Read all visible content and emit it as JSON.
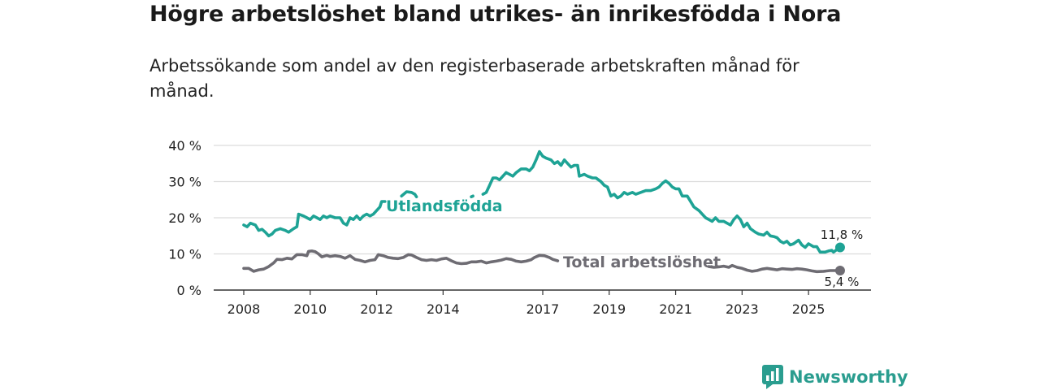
{
  "title": "Högre arbetslöshet bland utrikes- än inrikesfödda i Nora",
  "subtitle": "Arbetssökande som andel av den registerbaserade arbetskraften månad för månad.",
  "brand": {
    "name": "Newsworthy"
  },
  "colors": {
    "foreign": "#1ea395",
    "total": "#6e6c73",
    "grid": "#dcdcdc",
    "brand": "#2a9d8f"
  },
  "chart_data": {
    "type": "line",
    "title": "Högre arbetslöshet bland utrikes- än inrikesfödda i Nora",
    "ylim": [
      0,
      40
    ],
    "xlim": [
      2007.9,
      2026.1
    ],
    "y_ticks": [
      0,
      10,
      20,
      30,
      40
    ],
    "y_tick_labels": [
      "0 %",
      "10 %",
      "20 %",
      "30 %",
      "40 %"
    ],
    "x_ticks": [
      2008,
      2010,
      2012,
      2014,
      2017,
      2019,
      2021,
      2023,
      2025
    ],
    "x_tick_labels": [
      "2008",
      "2010",
      "2012",
      "2014",
      "2017",
      "2019",
      "2021",
      "2023",
      "2025"
    ],
    "grid": true,
    "series": [
      {
        "name": "Utlandsfödda",
        "end_label": "11,8 %",
        "segments": [
          [
            [
              2008.0,
              18
            ],
            [
              2008.1,
              17.5
            ],
            [
              2008.2,
              18.5
            ],
            [
              2008.35,
              18
            ],
            [
              2008.45,
              16.5
            ],
            [
              2008.55,
              16.8
            ],
            [
              2008.65,
              16
            ],
            [
              2008.75,
              15
            ],
            [
              2008.85,
              15.5
            ],
            [
              2008.95,
              16.5
            ],
            [
              2009.1,
              17
            ],
            [
              2009.25,
              16.5
            ],
            [
              2009.35,
              16
            ],
            [
              2009.5,
              17
            ],
            [
              2009.6,
              17.5
            ],
            [
              2009.65,
              21
            ],
            [
              2009.8,
              20.5
            ],
            [
              2009.9,
              20
            ],
            [
              2010.0,
              19.5
            ],
            [
              2010.1,
              20.5
            ],
            [
              2010.2,
              20
            ],
            [
              2010.3,
              19.5
            ],
            [
              2010.4,
              20.5
            ],
            [
              2010.5,
              20
            ],
            [
              2010.6,
              20.5
            ],
            [
              2010.75,
              20
            ],
            [
              2010.9,
              20
            ],
            [
              2011.0,
              18.5
            ],
            [
              2011.1,
              18
            ],
            [
              2011.2,
              20
            ],
            [
              2011.3,
              19.5
            ],
            [
              2011.4,
              20.5
            ],
            [
              2011.5,
              19.5
            ],
            [
              2011.6,
              20.5
            ],
            [
              2011.7,
              21
            ],
            [
              2011.8,
              20.5
            ],
            [
              2011.9,
              21
            ],
            [
              2012.0,
              22
            ],
            [
              2012.1,
              23
            ],
            [
              2012.15,
              24.5
            ],
            [
              2012.25,
              24.5
            ]
          ],
          [
            [
              2012.75,
              26
            ],
            [
              2012.9,
              27.2
            ],
            [
              2013.05,
              27
            ],
            [
              2013.15,
              26.5
            ],
            [
              2013.2,
              25.8
            ]
          ],
          [
            [
              2014.85,
              25.8
            ],
            [
              2014.9,
              26
            ]
          ],
          [
            [
              2015.2,
              26.5
            ],
            [
              2015.3,
              27
            ],
            [
              2015.4,
              29
            ],
            [
              2015.5,
              31
            ],
            [
              2015.6,
              31
            ],
            [
              2015.7,
              30.5
            ],
            [
              2015.8,
              31.5
            ],
            [
              2015.9,
              32.5
            ],
            [
              2016.0,
              32
            ],
            [
              2016.1,
              31.5
            ],
            [
              2016.2,
              32.5
            ],
            [
              2016.35,
              33.5
            ],
            [
              2016.5,
              33.5
            ],
            [
              2016.6,
              33
            ],
            [
              2016.7,
              34
            ],
            [
              2016.8,
              36
            ],
            [
              2016.9,
              38.3
            ],
            [
              2017.0,
              37
            ],
            [
              2017.1,
              36.5
            ],
            [
              2017.25,
              36
            ],
            [
              2017.35,
              35
            ],
            [
              2017.45,
              35.5
            ],
            [
              2017.55,
              34.5
            ],
            [
              2017.65,
              36
            ],
            [
              2017.75,
              35
            ],
            [
              2017.85,
              34
            ],
            [
              2017.95,
              34.5
            ],
            [
              2018.05,
              34.5
            ],
            [
              2018.1,
              31.5
            ],
            [
              2018.25,
              32
            ],
            [
              2018.35,
              31.5
            ],
            [
              2018.5,
              31
            ],
            [
              2018.6,
              31
            ],
            [
              2018.75,
              30
            ],
            [
              2018.85,
              29
            ],
            [
              2018.95,
              28.5
            ],
            [
              2019.05,
              26
            ],
            [
              2019.15,
              26.5
            ],
            [
              2019.25,
              25.5
            ],
            [
              2019.35,
              26
            ],
            [
              2019.45,
              27
            ],
            [
              2019.55,
              26.5
            ],
            [
              2019.7,
              27
            ],
            [
              2019.8,
              26.5
            ],
            [
              2019.95,
              27
            ],
            [
              2020.1,
              27.5
            ],
            [
              2020.25,
              27.5
            ],
            [
              2020.4,
              28
            ],
            [
              2020.5,
              28.5
            ],
            [
              2020.6,
              29.5
            ],
            [
              2020.7,
              30.2
            ],
            [
              2020.8,
              29.5
            ],
            [
              2020.9,
              28.5
            ],
            [
              2021.0,
              28
            ],
            [
              2021.1,
              28
            ],
            [
              2021.2,
              26
            ],
            [
              2021.35,
              26
            ],
            [
              2021.45,
              24.5
            ],
            [
              2021.55,
              23
            ],
            [
              2021.7,
              22
            ],
            [
              2021.8,
              21
            ],
            [
              2021.9,
              20
            ],
            [
              2022.0,
              19.5
            ],
            [
              2022.1,
              19
            ],
            [
              2022.2,
              20
            ],
            [
              2022.3,
              19
            ],
            [
              2022.45,
              19
            ],
            [
              2022.55,
              18.5
            ],
            [
              2022.65,
              18
            ],
            [
              2022.75,
              19.5
            ],
            [
              2022.85,
              20.5
            ],
            [
              2022.95,
              19.5
            ],
            [
              2023.05,
              17.5
            ],
            [
              2023.15,
              18.5
            ],
            [
              2023.25,
              17
            ],
            [
              2023.4,
              16
            ],
            [
              2023.5,
              15.5
            ],
            [
              2023.65,
              15.2
            ],
            [
              2023.75,
              16
            ],
            [
              2023.85,
              15
            ],
            [
              2023.95,
              14.8
            ],
            [
              2024.05,
              14.5
            ],
            [
              2024.15,
              13.5
            ],
            [
              2024.25,
              13
            ],
            [
              2024.35,
              13.5
            ],
            [
              2024.45,
              12.5
            ],
            [
              2024.55,
              12.8
            ],
            [
              2024.7,
              13.8
            ],
            [
              2024.8,
              12.5
            ],
            [
              2024.9,
              11.8
            ],
            [
              2025.0,
              12.8
            ],
            [
              2025.15,
              12
            ],
            [
              2025.25,
              12
            ],
            [
              2025.35,
              10.5
            ],
            [
              2025.5,
              10.5
            ],
            [
              2025.6,
              10.8
            ],
            [
              2025.7,
              11
            ],
            [
              2025.75,
              10.5
            ],
            [
              2025.85,
              11.2
            ],
            [
              2025.95,
              11.8
            ]
          ]
        ]
      },
      {
        "name": "Total arbetslöshet",
        "end_label": "5,4 %",
        "segments": [
          [
            [
              2008.0,
              6
            ],
            [
              2008.15,
              6
            ],
            [
              2008.3,
              5.2
            ],
            [
              2008.45,
              5.6
            ],
            [
              2008.6,
              5.8
            ],
            [
              2008.75,
              6.5
            ],
            [
              2008.9,
              7.5
            ],
            [
              2009.0,
              8.5
            ],
            [
              2009.15,
              8.4
            ],
            [
              2009.3,
              8.8
            ],
            [
              2009.45,
              8.6
            ],
            [
              2009.6,
              9.8
            ],
            [
              2009.75,
              9.8
            ],
            [
              2009.9,
              9.5
            ],
            [
              2009.95,
              10.7
            ],
            [
              2010.05,
              10.8
            ],
            [
              2010.15,
              10.6
            ],
            [
              2010.25,
              10
            ],
            [
              2010.35,
              9.2
            ],
            [
              2010.5,
              9.6
            ],
            [
              2010.6,
              9.3
            ],
            [
              2010.75,
              9.5
            ],
            [
              2010.9,
              9.3
            ],
            [
              2011.05,
              8.8
            ],
            [
              2011.2,
              9.5
            ],
            [
              2011.35,
              8.5
            ],
            [
              2011.5,
              8.2
            ],
            [
              2011.65,
              7.8
            ],
            [
              2011.8,
              8.2
            ],
            [
              2011.95,
              8.4
            ],
            [
              2012.05,
              9.8
            ],
            [
              2012.2,
              9.5
            ],
            [
              2012.35,
              9
            ],
            [
              2012.5,
              8.8
            ],
            [
              2012.65,
              8.7
            ],
            [
              2012.8,
              9
            ],
            [
              2012.95,
              9.8
            ],
            [
              2013.05,
              9.7
            ],
            [
              2013.2,
              9
            ],
            [
              2013.35,
              8.4
            ],
            [
              2013.5,
              8.2
            ],
            [
              2013.65,
              8.4
            ],
            [
              2013.8,
              8.2
            ],
            [
              2013.95,
              8.6
            ],
            [
              2014.1,
              8.8
            ],
            [
              2014.25,
              8.1
            ],
            [
              2014.4,
              7.5
            ],
            [
              2014.55,
              7.3
            ],
            [
              2014.7,
              7.4
            ],
            [
              2014.85,
              7.8
            ],
            [
              2015.0,
              7.8
            ],
            [
              2015.15,
              8
            ],
            [
              2015.3,
              7.5
            ],
            [
              2015.45,
              7.8
            ],
            [
              2015.6,
              8
            ],
            [
              2015.75,
              8.3
            ],
            [
              2015.9,
              8.7
            ],
            [
              2016.05,
              8.5
            ],
            [
              2016.2,
              8
            ],
            [
              2016.35,
              7.8
            ],
            [
              2016.5,
              8
            ],
            [
              2016.65,
              8.4
            ],
            [
              2016.75,
              9
            ],
            [
              2016.9,
              9.6
            ],
            [
              2017.05,
              9.5
            ],
            [
              2017.2,
              9
            ],
            [
              2017.3,
              8.5
            ],
            [
              2017.45,
              8.1
            ]
          ],
          [
            [
              2022.0,
              6.5
            ],
            [
              2022.15,
              6.3
            ],
            [
              2022.3,
              6.4
            ],
            [
              2022.45,
              6.6
            ],
            [
              2022.6,
              6.3
            ],
            [
              2022.7,
              6.8
            ],
            [
              2022.85,
              6.3
            ],
            [
              2023.0,
              6
            ],
            [
              2023.15,
              5.5
            ],
            [
              2023.3,
              5.2
            ],
            [
              2023.45,
              5.4
            ],
            [
              2023.6,
              5.8
            ],
            [
              2023.75,
              6
            ],
            [
              2023.9,
              5.8
            ],
            [
              2024.05,
              5.6
            ],
            [
              2024.2,
              5.9
            ],
            [
              2024.35,
              5.8
            ],
            [
              2024.5,
              5.7
            ],
            [
              2024.65,
              5.9
            ],
            [
              2024.8,
              5.8
            ],
            [
              2024.95,
              5.6
            ],
            [
              2025.1,
              5.3
            ],
            [
              2025.25,
              5.1
            ],
            [
              2025.45,
              5.2
            ],
            [
              2025.65,
              5.4
            ],
            [
              2025.95,
              5.4
            ]
          ]
        ]
      }
    ]
  }
}
